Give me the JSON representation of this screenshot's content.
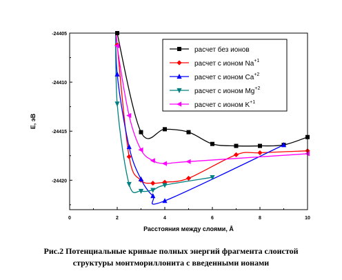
{
  "chart_data": {
    "type": "line",
    "xlabel": "Расстояния между слоями, Å",
    "ylabel": "E, эВ",
    "xlim": [
      0,
      10
    ],
    "ylim": [
      -24423,
      -24405
    ],
    "xticks": [
      0,
      2,
      4,
      6,
      8,
      10
    ],
    "yticks": [
      -24405,
      -24410,
      -24415,
      -24420
    ],
    "legend_position": "top-right",
    "series": [
      {
        "name": "расчет без ионов",
        "color": "#000000",
        "marker": "square",
        "x": [
          2,
          3,
          4,
          5,
          6,
          7,
          8,
          9,
          10
        ],
        "y": [
          -24405.0,
          -24415.1,
          -24414.8,
          -24415.1,
          -24416.3,
          -24416.5,
          -24416.5,
          -24416.4,
          -24415.6
        ]
      },
      {
        "name": "расчет с ионом Na",
        "charge": "+1",
        "color": "#ff0000",
        "marker": "diamond",
        "x": [
          2,
          2.5,
          3,
          3.5,
          4,
          5,
          7,
          8,
          10
        ],
        "y": [
          -24406.2,
          -24417.6,
          -24420.0,
          -24420.3,
          -24420.2,
          -24419.8,
          -24417.4,
          -24417.2,
          -24417.0
        ]
      },
      {
        "name": "расчет с ионом Ca",
        "charge": "+2",
        "color": "#0000ff",
        "marker": "triangle-up",
        "x": [
          2,
          2.5,
          3,
          3.5,
          4,
          9
        ],
        "y": [
          -24409.2,
          -24416.6,
          -24419.9,
          -24421.6,
          -24422.1,
          -24416.4
        ]
      },
      {
        "name": "расчет с ионом Mg",
        "charge": "+2",
        "color": "#008080",
        "marker": "triangle-down",
        "x": [
          2,
          2.5,
          3,
          3.5,
          4,
          6
        ],
        "y": [
          -24412.2,
          -24420.4,
          -24421.1,
          -24421.0,
          -24420.5,
          -24419.7
        ]
      },
      {
        "name": "расчет с ионом K",
        "charge": "+1",
        "color": "#ff00ff",
        "marker": "triangle-left",
        "x": [
          2,
          2.5,
          3,
          3.5,
          4,
          5,
          10
        ],
        "y": [
          -24406.3,
          -24413.4,
          -24416.9,
          -24418.0,
          -24418.3,
          -24418.1,
          -24417.3
        ]
      }
    ]
  },
  "caption": {
    "line1": "Рис.2 Потенциальные кривые полных энергий фрагмента слоистой",
    "line2": "структуры монтмориллонита с введенными ионами"
  }
}
